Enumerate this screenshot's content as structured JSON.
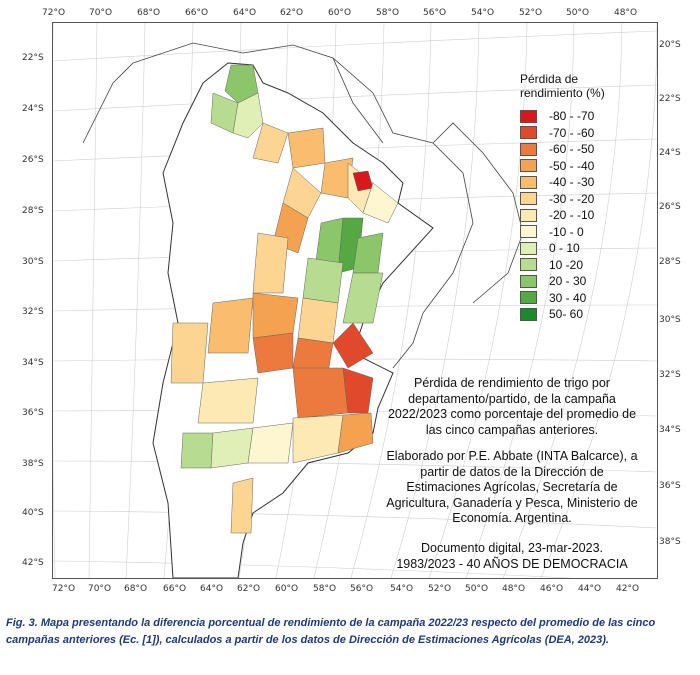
{
  "map": {
    "lon_ticks_top": [
      "72°O",
      "70°O",
      "68°O",
      "66°O",
      "64°O",
      "62°O",
      "60°O",
      "58°O",
      "56°O",
      "54°O",
      "52°O",
      "50°O",
      "48°O"
    ],
    "lon_ticks_bottom": [
      "72°O",
      "70°O",
      "68°O",
      "66°O",
      "64°O",
      "62°O",
      "60°O",
      "58°O",
      "56°O",
      "54°O",
      "52°O",
      "50°O",
      "48°O",
      "46°O",
      "44°O",
      "42°O"
    ],
    "lat_ticks_left": [
      "22°S",
      "24°S",
      "26°S",
      "28°S",
      "30°S",
      "32°S",
      "34°S",
      "36°S",
      "38°S",
      "40°S",
      "42°S"
    ],
    "lat_ticks_right": [
      "20°S",
      "22°S",
      "24°S",
      "26°S",
      "28°S",
      "30°S",
      "32°S",
      "34°S",
      "36°S",
      "38°S"
    ]
  },
  "legend": {
    "title_line1": "Pérdida de",
    "title_line2": "rendimiento (%)",
    "items": [
      {
        "label": "-80 - -70",
        "color": "#d7191c"
      },
      {
        "label": "-70 - -60",
        "color": "#e04a2a"
      },
      {
        "label": "-60 - -50",
        "color": "#ec7a3c"
      },
      {
        "label": "-50 - -40",
        "color": "#f4a24f"
      },
      {
        "label": "-40 - -30",
        "color": "#f9bd6d"
      },
      {
        "label": "-30 - -20",
        "color": "#fcd592"
      },
      {
        "label": "-20 - -10",
        "color": "#fde9b4"
      },
      {
        "label": "-10 - 0",
        "color": "#fdf6d0"
      },
      {
        "label": "0 - 10",
        "color": "#e0efb6"
      },
      {
        "label": "10 -20",
        "color": "#b7dc8f"
      },
      {
        "label": "20 - 30",
        "color": "#8cc66a"
      },
      {
        "label": "30 - 40",
        "color": "#55a844"
      },
      {
        "label": "50- 60",
        "color": "#1a8a2e"
      }
    ]
  },
  "notes": {
    "description": [
      "Pérdida de rendimiento de trigo por",
      "departamento/partido, de la campaña",
      "2022/2023 como porcentaje del promedio de",
      "las cinco campañas anteriores."
    ],
    "credits": [
      "Elaborado por P.E. Abbate (INTA Balcarce), a",
      "partir de datos de la Dirección de",
      "Estimaciones Agrícolas, Secretaría de",
      "Agricultura, Ganadería y Pesca, Ministerio de",
      "Economía. Argentina."
    ],
    "doc": [
      "Documento digital, 23-mar-2023.",
      "1983/2023 - 40 AÑOS DE DEMOCRACIA"
    ]
  },
  "caption": {
    "line1": "Fig. 3. Mapa presentando la diferencia porcentual de rendimiento de la campaña 2022/23 respecto del promedio de las cinco",
    "line2": "campañas anteriores (Ec. [1]), calculados a partir de los datos de Dirección de Estimaciones Agrícolas (DEA, 2023)."
  }
}
